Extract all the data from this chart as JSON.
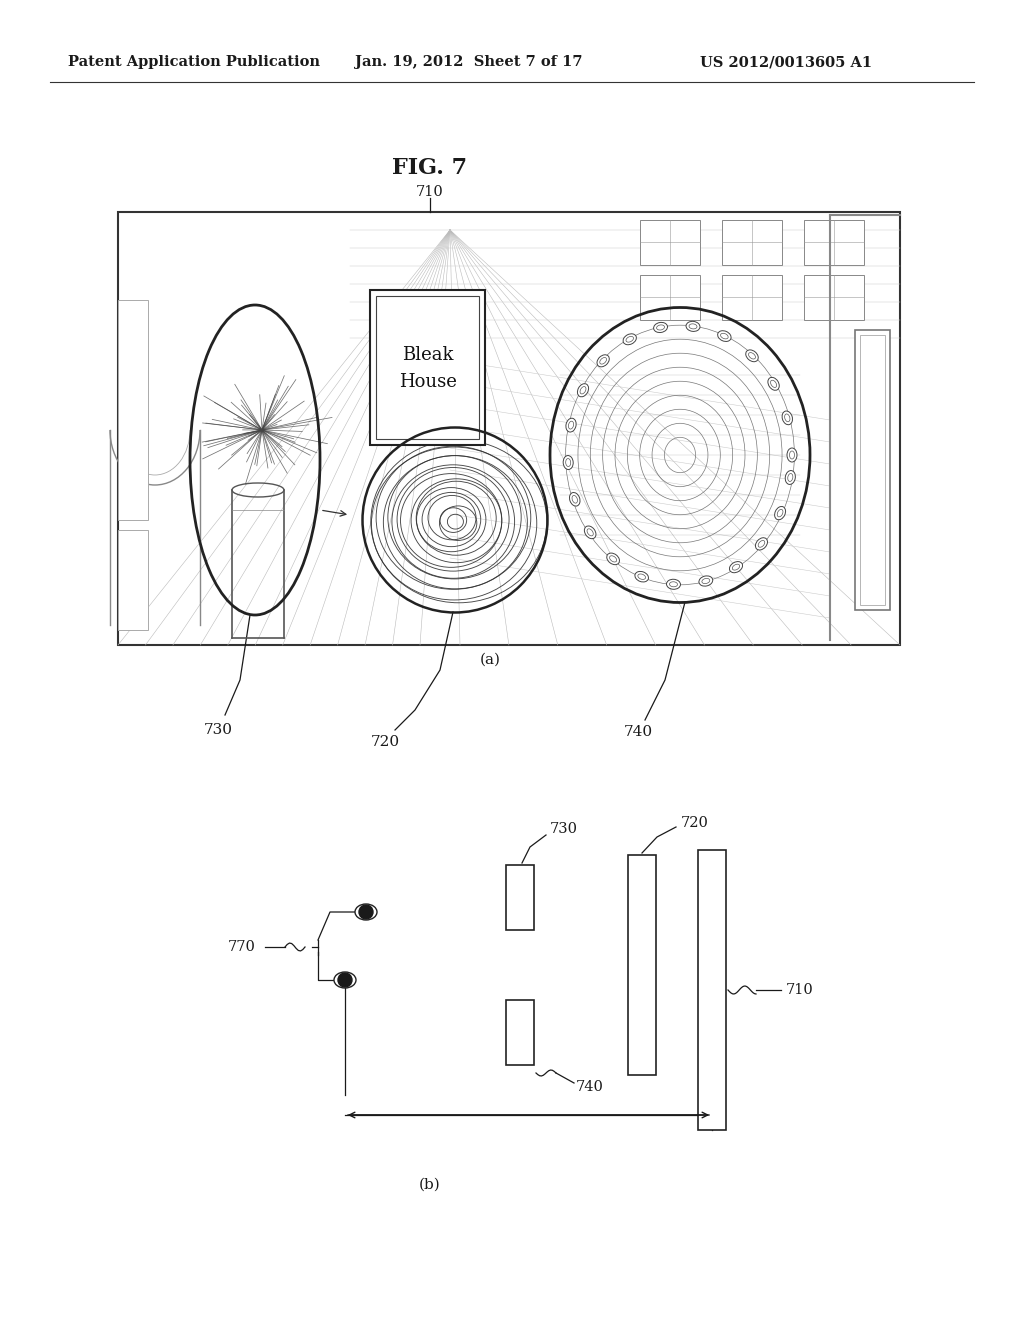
{
  "background_color": "#ffffff",
  "header_left": "Patent Application Publication",
  "header_center": "Jan. 19, 2012  Sheet 7 of 17",
  "header_right": "US 2012/0013605 A1",
  "fig_title": "FIG. 7",
  "label_710": "710",
  "label_720": "720",
  "label_730": "730",
  "label_740": "740",
  "label_770": "770",
  "label_a": "(a)",
  "label_b": "(b)",
  "text_color": "#1a1a1a",
  "line_color": "#1a1a1a"
}
